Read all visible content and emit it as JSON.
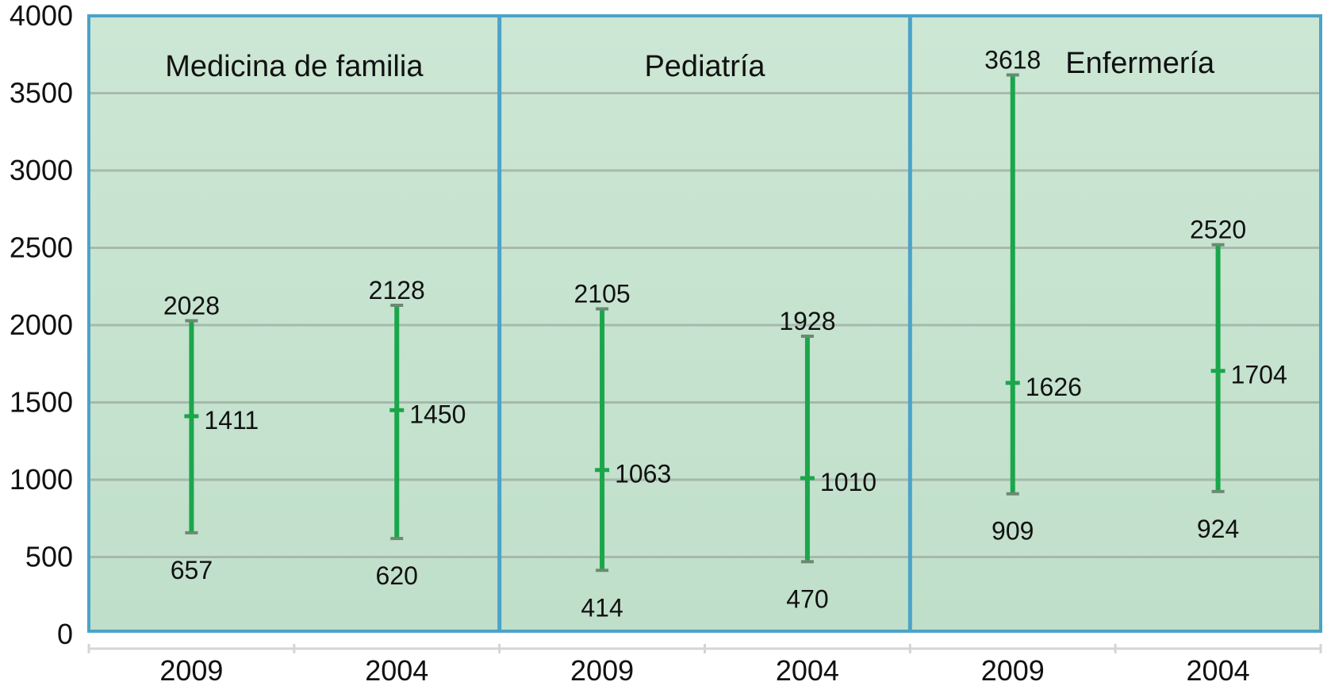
{
  "chart_data": {
    "type": "range",
    "title": "",
    "xlabel": "",
    "ylabel": "",
    "ylim": [
      0,
      4000
    ],
    "yticks": [
      "0",
      "500",
      "1000",
      "1500",
      "2000",
      "2500",
      "3000",
      "3500",
      "4000"
    ],
    "grid": true,
    "colors": {
      "panel_fill": "#c6e3cf",
      "panel_border": "#4ba3c9",
      "series": "#1aa64a",
      "grid": "#9aa79c"
    },
    "panels": [
      {
        "title": "Medicina de familia",
        "groups": [
          {
            "label": "2009",
            "min": 657,
            "median": 1411,
            "max": 2028
          },
          {
            "label": "2004",
            "min": 620,
            "median": 1450,
            "max": 2128
          }
        ]
      },
      {
        "title": "Pediatría",
        "groups": [
          {
            "label": "2009",
            "min": 414,
            "median": 1063,
            "max": 2105
          },
          {
            "label": "2004",
            "min": 470,
            "median": 1010,
            "max": 1928
          }
        ]
      },
      {
        "title": "Enfermería",
        "groups": [
          {
            "label": "2009",
            "min": 909,
            "median": 1626,
            "max": 3618
          },
          {
            "label": "2004",
            "min": 924,
            "median": 1704,
            "max": 2520
          }
        ]
      }
    ]
  }
}
